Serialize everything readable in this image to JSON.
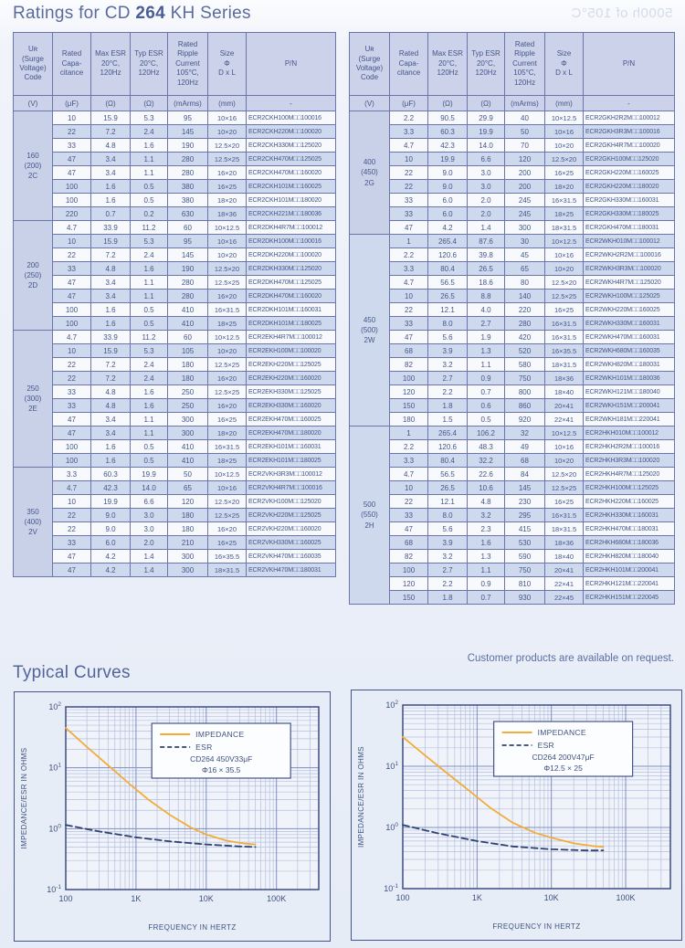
{
  "page": {
    "title_prefix": "Ratings for CD ",
    "title_bold": "264",
    "title_suffix": " KH Series",
    "bleed_text": "5000h of 105°C",
    "note": "Customer products are available on request.",
    "curves_heading": "Typical Curves"
  },
  "table_header": {
    "columns": [
      {
        "label": "Uʀ\n(Surge\nVoltage)\nCode",
        "unit": "(V)"
      },
      {
        "label": "Rated\nCapa-\ncitance",
        "unit": "(μF)"
      },
      {
        "label": "Max ESR\n20°C,\n120Hz",
        "unit": "(Ω)"
      },
      {
        "label": "Typ ESR\n20°C,\n120Hz",
        "unit": "(Ω)"
      },
      {
        "label": "Rated\nRipple\nCurrent\n105°C,\n120Hz",
        "unit": "(mArms)"
      },
      {
        "label": "Size\nΦ\nD x L",
        "unit": "(mm)"
      },
      {
        "label": "P/N",
        "unit": "-"
      }
    ]
  },
  "tables": {
    "left": {
      "groups": [
        {
          "code": "160\n(200)\n2C",
          "rows": [
            [
              "10",
              "15.9",
              "5.3",
              "95",
              "10×16",
              "ECR2CKH100M□□100016"
            ],
            [
              "22",
              "7.2",
              "2.4",
              "145",
              "10×20",
              "ECR2CKH220M□□100020"
            ],
            [
              "33",
              "4.8",
              "1.6",
              "190",
              "12.5×20",
              "ECR2CKH330M□□125020"
            ],
            [
              "47",
              "3.4",
              "1.1",
              "280",
              "12.5×25",
              "ECR2CKH470M□□125025"
            ],
            [
              "47",
              "3.4",
              "1.1",
              "280",
              "16×20",
              "ECR2CKH470M□□160020"
            ],
            [
              "100",
              "1.6",
              "0.5",
              "380",
              "16×25",
              "ECR2CKH101M□□160025"
            ],
            [
              "100",
              "1.6",
              "0.5",
              "380",
              "18×20",
              "ECR2CKH101M□□180020"
            ],
            [
              "220",
              "0.7",
              "0.2",
              "630",
              "18×36",
              "ECR2CKH221M□□180036"
            ]
          ]
        },
        {
          "code": "200\n(250)\n2D",
          "rows": [
            [
              "4.7",
              "33.9",
              "11.2",
              "60",
              "10×12.5",
              "ECR2DKH4R7M□□100012"
            ],
            [
              "10",
              "15.9",
              "5.3",
              "95",
              "10×16",
              "ECR2DKH100M□□100016"
            ],
            [
              "22",
              "7.2",
              "2.4",
              "145",
              "10×20",
              "ECR2DKH220M□□100020"
            ],
            [
              "33",
              "4.8",
              "1.6",
              "190",
              "12.5×20",
              "ECR2DKH330M□□125020"
            ],
            [
              "47",
              "3.4",
              "1.1",
              "280",
              "12.5×25",
              "ECR2DKH470M□□125025"
            ],
            [
              "47",
              "3.4",
              "1.1",
              "280",
              "16×20",
              "ECR2DKH470M□□160020"
            ],
            [
              "100",
              "1.6",
              "0.5",
              "410",
              "16×31.5",
              "ECR2DKH101M□□160031"
            ],
            [
              "100",
              "1.6",
              "0.5",
              "410",
              "18×25",
              "ECR2DKH101M□□180025"
            ]
          ]
        },
        {
          "code": "250\n(300)\n2E",
          "rows": [
            [
              "4.7",
              "33.9",
              "11.2",
              "60",
              "10×12.5",
              "ECR2EKH4R7M□□100012"
            ],
            [
              "10",
              "15.9",
              "5.3",
              "105",
              "10×20",
              "ECR2EKH100M□□100020"
            ],
            [
              "22",
              "7.2",
              "2.4",
              "180",
              "12.5×25",
              "ECR2EKH220M□□125025"
            ],
            [
              "22",
              "7.2",
              "2.4",
              "180",
              "16×20",
              "ECR2EKH220M□□160020"
            ],
            [
              "33",
              "4.8",
              "1.6",
              "250",
              "12.5×25",
              "ECR2EKH330M□□125025"
            ],
            [
              "33",
              "4.8",
              "1.6",
              "250",
              "16×20",
              "ECR2EKH330M□□160020"
            ],
            [
              "47",
              "3.4",
              "1.1",
              "300",
              "16×25",
              "ECR2EKH470M□□160025"
            ],
            [
              "47",
              "3.4",
              "1.1",
              "300",
              "18×20",
              "ECR2EKH470M□□180020"
            ],
            [
              "100",
              "1.6",
              "0.5",
              "410",
              "16×31.5",
              "ECR2EKH101M□□160031"
            ],
            [
              "100",
              "1.6",
              "0.5",
              "410",
              "18×25",
              "ECR2EKH101M□□180025"
            ]
          ]
        },
        {
          "code": "350\n(400)\n2V",
          "rows": [
            [
              "3.3",
              "60.3",
              "19.9",
              "50",
              "10×12.5",
              "ECR2VKH3R3M□□100012"
            ],
            [
              "4.7",
              "42.3",
              "14.0",
              "65",
              "10×16",
              "ECR2VKH4R7M□□100016"
            ],
            [
              "10",
              "19.9",
              "6.6",
              "120",
              "12.5×20",
              "ECR2VKH100M□□125020"
            ],
            [
              "22",
              "9.0",
              "3.0",
              "180",
              "12.5×25",
              "ECR2VKH220M□□125025"
            ],
            [
              "22",
              "9.0",
              "3.0",
              "180",
              "16×20",
              "ECR2VKH220M□□160020"
            ],
            [
              "33",
              "6.0",
              "2.0",
              "210",
              "16×25",
              "ECR2VKH330M□□160025"
            ],
            [
              "47",
              "4.2",
              "1.4",
              "300",
              "16×35.5",
              "ECR2VKH470M□□160035"
            ],
            [
              "47",
              "4.2",
              "1.4",
              "300",
              "18×31.5",
              "ECR2VKH470M□□180031"
            ]
          ]
        }
      ]
    },
    "right": {
      "groups": [
        {
          "code": "400\n(450)\n2G",
          "rows": [
            [
              "2.2",
              "90.5",
              "29.9",
              "40",
              "10×12.5",
              "ECR2GKH2R2M□□100012"
            ],
            [
              "3.3",
              "60.3",
              "19.9",
              "50",
              "10×16",
              "ECR2GKH3R3M□□100016"
            ],
            [
              "4.7",
              "42.3",
              "14.0",
              "70",
              "10×20",
              "ECR2GKH4R7M□□100020"
            ],
            [
              "10",
              "19.9",
              "6.6",
              "120",
              "12.5×20",
              "ECR2GKH100M□□125020"
            ],
            [
              "22",
              "9.0",
              "3.0",
              "200",
              "16×25",
              "ECR2GKH220M□□160025"
            ],
            [
              "22",
              "9.0",
              "3.0",
              "200",
              "18×20",
              "ECR2GKH220M□□180020"
            ],
            [
              "33",
              "6.0",
              "2.0",
              "245",
              "16×31.5",
              "ECR2GKH330M□□160031"
            ],
            [
              "33",
              "6.0",
              "2.0",
              "245",
              "18×25",
              "ECR2GKH330M□□180025"
            ],
            [
              "47",
              "4.2",
              "1.4",
              "300",
              "18×31.5",
              "ECR2GKH470M□□180031"
            ]
          ]
        },
        {
          "code": "450\n(500)\n2W",
          "rows": [
            [
              "1",
              "265.4",
              "87.6",
              "30",
              "10×12.5",
              "ECR2WKH010M□□100012"
            ],
            [
              "2.2",
              "120.6",
              "39.8",
              "45",
              "10×16",
              "ECR2WKH2R2M□□100016"
            ],
            [
              "3.3",
              "80.4",
              "26.5",
              "65",
              "10×20",
              "ECR2WKH3R3M□□100020"
            ],
            [
              "4.7",
              "56.5",
              "18.6",
              "80",
              "12.5×20",
              "ECR2WKH4R7M□□125020"
            ],
            [
              "10",
              "26.5",
              "8.8",
              "140",
              "12.5×25",
              "ECR2WKH100M□□125025"
            ],
            [
              "22",
              "12.1",
              "4.0",
              "220",
              "16×25",
              "ECR2WKH220M□□160025"
            ],
            [
              "33",
              "8.0",
              "2.7",
              "280",
              "16×31.5",
              "ECR2WKH330M□□160031"
            ],
            [
              "47",
              "5.6",
              "1.9",
              "420",
              "16×31.5",
              "ECR2WKH470M□□160031"
            ],
            [
              "68",
              "3.9",
              "1.3",
              "520",
              "16×35.5",
              "ECR2WKH680M□□160035"
            ],
            [
              "82",
              "3.2",
              "1.1",
              "580",
              "18×31.5",
              "ECR2WKH820M□□180031"
            ],
            [
              "100",
              "2.7",
              "0.9",
              "750",
              "18×36",
              "ECR2WKH101M□□180036"
            ],
            [
              "120",
              "2.2",
              "0.7",
              "800",
              "18×40",
              "ECR2WKH121M□□180040"
            ],
            [
              "150",
              "1.8",
              "0.6",
              "860",
              "20×41",
              "ECR2WKH151M□□200041"
            ],
            [
              "180",
              "1.5",
              "0.5",
              "920",
              "22×41",
              "ECR2WKH181M□□220041"
            ]
          ]
        },
        {
          "code": "500\n(550)\n2H",
          "rows": [
            [
              "1",
              "265.4",
              "106.2",
              "32",
              "10×12.5",
              "ECR2HKH010M□□100012"
            ],
            [
              "2.2",
              "120.6",
              "48.3",
              "49",
              "10×16",
              "ECR2HKH2R2M□□100016"
            ],
            [
              "3.3",
              "80.4",
              "32.2",
              "68",
              "10×20",
              "ECR2HKH3R3M□□100020"
            ],
            [
              "4.7",
              "56.5",
              "22.6",
              "84",
              "12.5×20",
              "ECR2HKH4R7M□□125020"
            ],
            [
              "10",
              "26.5",
              "10.6",
              "145",
              "12.5×25",
              "ECR2HKH100M□□125025"
            ],
            [
              "22",
              "12.1",
              "4.8",
              "230",
              "16×25",
              "ECR2HKH220M□□160025"
            ],
            [
              "33",
              "8.0",
              "3.2",
              "295",
              "16×31.5",
              "ECR2HKH330M□□160031"
            ],
            [
              "47",
              "5.6",
              "2.3",
              "415",
              "18×31.5",
              "ECR2HKH470M□□180031"
            ],
            [
              "68",
              "3.9",
              "1.6",
              "530",
              "18×36",
              "ECR2HKH680M□□180036"
            ],
            [
              "82",
              "3.2",
              "1.3",
              "590",
              "18×40",
              "ECR2HKH820M□□180040"
            ],
            [
              "100",
              "2.7",
              "1.1",
              "750",
              "20×41",
              "ECR2HKH101M□□200041"
            ],
            [
              "120",
              "2.2",
              "0.9",
              "810",
              "22×41",
              "ECR2HKH121M□□220041"
            ],
            [
              "150",
              "1.8",
              "0.7",
              "930",
              "22×45",
              "ECR2HKH151M□□220045"
            ]
          ]
        }
      ]
    }
  },
  "chart_data": [
    {
      "type": "line",
      "x_scale": "log",
      "y_scale": "log",
      "grid": true,
      "legend_position": "upper-right",
      "xlabel": "FREQUENCY IN HERTZ",
      "ylabel": "IMPEDANCE/ESR IN OHMS",
      "xlim": [
        100,
        400000
      ],
      "ylim": [
        0.1,
        100
      ],
      "x_ticks": [
        "100",
        "1K",
        "10K",
        "100K"
      ],
      "x_tick_values": [
        100,
        1000,
        10000,
        100000
      ],
      "y_tick_exponents": [
        "2",
        "1",
        "0",
        "-1"
      ],
      "y_tick_values": [
        100,
        10,
        1,
        0.1
      ],
      "caption_lines": [
        "CD264 450V33μF",
        "Φ16 × 35.5"
      ],
      "series": [
        {
          "name": "IMPEDANCE",
          "style": "solid",
          "color": "#F2AC3A",
          "points": [
            [
              100,
              45
            ],
            [
              200,
              22
            ],
            [
              400,
              11
            ],
            [
              800,
              5.5
            ],
            [
              1500,
              3.0
            ],
            [
              3000,
              1.7
            ],
            [
              6000,
              1.05
            ],
            [
              10000,
              0.8
            ],
            [
              20000,
              0.63
            ],
            [
              35000,
              0.57
            ],
            [
              50000,
              0.55
            ]
          ]
        },
        {
          "name": "ESR",
          "style": "dashed",
          "color": "#2E4173",
          "points": [
            [
              100,
              1.15
            ],
            [
              300,
              0.9
            ],
            [
              1000,
              0.72
            ],
            [
              3000,
              0.62
            ],
            [
              10000,
              0.55
            ],
            [
              30000,
              0.51
            ],
            [
              50000,
              0.5
            ]
          ]
        }
      ]
    },
    {
      "type": "line",
      "x_scale": "log",
      "y_scale": "log",
      "grid": true,
      "legend_position": "upper-right",
      "xlabel": "FREQUENCY IN HERTZ",
      "ylabel": "IMPEDANCE/ESR IN OHMS",
      "xlim": [
        100,
        400000
      ],
      "ylim": [
        0.1,
        100
      ],
      "x_ticks": [
        "100",
        "1K",
        "10K",
        "100K"
      ],
      "x_tick_values": [
        100,
        1000,
        10000,
        100000
      ],
      "y_tick_exponents": [
        "2",
        "1",
        "0",
        "-1"
      ],
      "y_tick_values": [
        100,
        10,
        1,
        0.1
      ],
      "caption_lines": [
        "CD264 200V47μF",
        "Φ12.5 × 25"
      ],
      "series": [
        {
          "name": "IMPEDANCE",
          "style": "solid",
          "color": "#F2AC3A",
          "points": [
            [
              100,
              30
            ],
            [
              200,
              15
            ],
            [
              400,
              7.6
            ],
            [
              800,
              3.9
            ],
            [
              1500,
              2.1
            ],
            [
              3000,
              1.2
            ],
            [
              6000,
              0.82
            ],
            [
              10000,
              0.68
            ],
            [
              20000,
              0.55
            ],
            [
              35000,
              0.5
            ],
            [
              50000,
              0.48
            ]
          ]
        },
        {
          "name": "ESR",
          "style": "dashed",
          "color": "#2E4173",
          "points": [
            [
              100,
              1.1
            ],
            [
              300,
              0.8
            ],
            [
              1000,
              0.6
            ],
            [
              3000,
              0.49
            ],
            [
              10000,
              0.44
            ],
            [
              30000,
              0.42
            ],
            [
              50000,
              0.42
            ]
          ]
        }
      ]
    }
  ]
}
